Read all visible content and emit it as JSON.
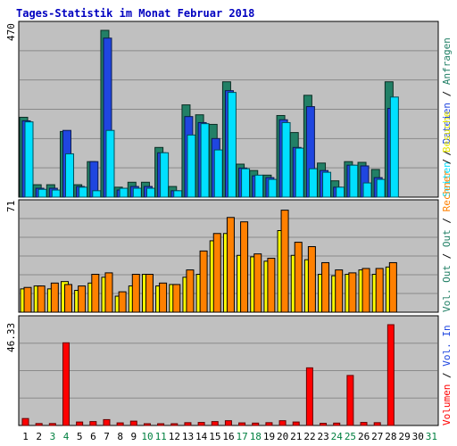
{
  "chart_data": [
    {
      "type": "bar",
      "title": "Tages-Statistik im Monat Februar 2018",
      "ymax_label": "470",
      "ylim": [
        0,
        470
      ],
      "categories": [
        "1",
        "2",
        "3",
        "4",
        "5",
        "6",
        "7",
        "8",
        "9",
        "10",
        "11",
        "12",
        "13",
        "14",
        "15",
        "16",
        "17",
        "18",
        "19",
        "20",
        "21",
        "22",
        "23",
        "24",
        "25",
        "26",
        "27",
        "28",
        "29",
        "30",
        "31"
      ],
      "legend": [
        "Anfragen",
        "Dateien",
        "Seiten"
      ],
      "series": [
        {
          "name": "Anfragen",
          "color": "#228066",
          "values": [
            225,
            35,
            35,
            185,
            35,
            100,
            470,
            28,
            42,
            42,
            140,
            30,
            260,
            232,
            205,
            325,
            93,
            75,
            62,
            230,
            182,
            287,
            96,
            46,
            100,
            98,
            78,
            325,
            null,
            null,
            null
          ]
        },
        {
          "name": "Dateien",
          "color": "#1f46e0",
          "values": [
            215,
            25,
            25,
            188,
            30,
            100,
            448,
            20,
            30,
            30,
            125,
            18,
            227,
            210,
            165,
            300,
            82,
            60,
            55,
            218,
            140,
            255,
            75,
            28,
            90,
            88,
            55,
            250,
            null,
            null,
            null
          ]
        },
        {
          "name": "Seiten",
          "color": "#00e0ff",
          "values": [
            212,
            22,
            20,
            122,
            28,
            18,
            188,
            25,
            25,
            25,
            125,
            18,
            175,
            207,
            133,
            295,
            80,
            62,
            50,
            210,
            138,
            80,
            70,
            28,
            90,
            40,
            50,
            282,
            null,
            null,
            null
          ]
        }
      ]
    },
    {
      "type": "bar",
      "ymax_label": "71",
      "ylim": [
        0,
        71
      ],
      "legend": [
        "Besuche",
        "Rechner",
        "Out",
        "Vol. Out"
      ],
      "series": [
        {
          "name": "Besuche",
          "color": "#ffff00",
          "values": [
            16,
            18,
            16,
            21,
            15,
            20,
            24,
            11,
            18,
            26,
            18,
            19,
            24,
            26,
            49,
            54,
            39,
            38,
            35,
            56,
            39,
            36,
            26,
            25,
            26,
            29,
            26,
            31,
            null,
            null,
            null
          ]
        },
        {
          "name": "Rechner",
          "color": "#ff8000",
          "values": [
            17,
            18,
            20,
            19,
            18,
            26,
            27,
            14,
            26,
            26,
            20,
            19,
            29,
            42,
            54,
            65,
            62,
            40,
            37,
            70,
            48,
            45,
            34,
            29,
            27,
            30,
            30,
            34,
            null,
            null,
            null
          ]
        }
      ]
    },
    {
      "type": "bar",
      "ymax_label": "46.33",
      "ylim": [
        0,
        46.33
      ],
      "legend": [
        "Vol. In",
        "Volumen"
      ],
      "series": [
        {
          "name": "Volumen",
          "color": "#ff0000",
          "values": [
            3.2,
            0.9,
            0.9,
            38,
            1.6,
            1.8,
            2.7,
            1.2,
            2.0,
            0.8,
            0.8,
            0.8,
            1.3,
            1.4,
            1.8,
            2.2,
            1.2,
            1.1,
            1.3,
            2.2,
            1.6,
            26.5,
            1.0,
            1.1,
            23,
            1.4,
            1.3,
            46.33,
            null,
            null,
            null
          ]
        }
      ]
    }
  ]
}
